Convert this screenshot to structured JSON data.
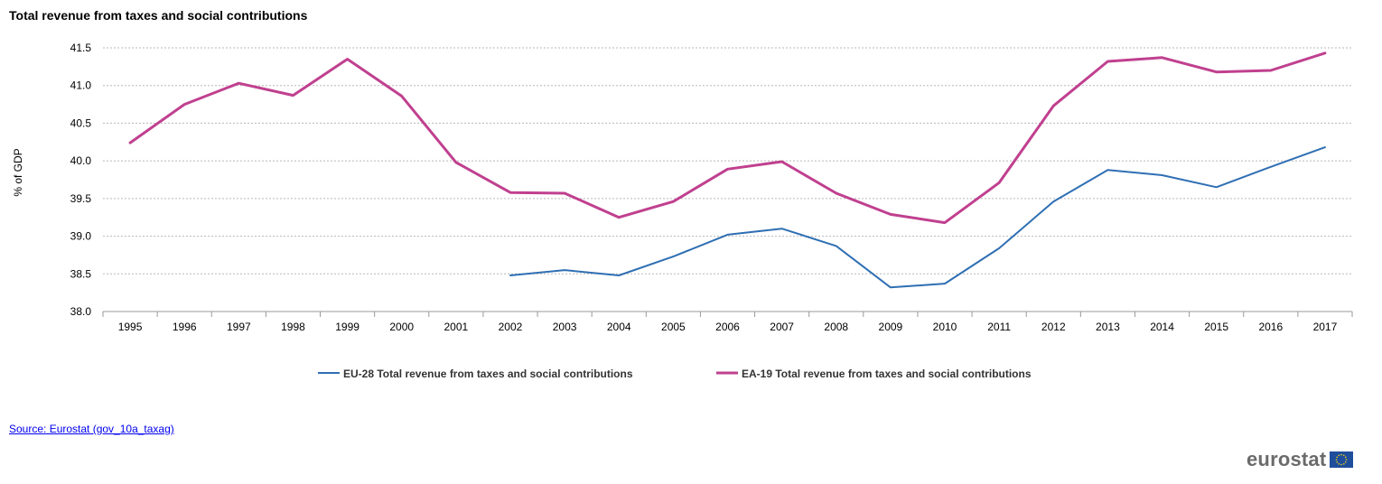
{
  "title": "Total revenue from taxes and social contributions",
  "source": {
    "label": "Source: Eurostat (gov_10a_taxag)"
  },
  "logo": {
    "text": "eurostat"
  },
  "chart_data": {
    "type": "line",
    "ylabel": "% of GDP",
    "xlabel": "",
    "ylim": [
      38.0,
      41.5
    ],
    "yticks": [
      "38.0",
      "38.5",
      "39.0",
      "39.5",
      "40.0",
      "40.5",
      "41.0",
      "41.5"
    ],
    "ytick_values": [
      38.0,
      38.5,
      39.0,
      39.5,
      40.0,
      40.5,
      41.0,
      41.5
    ],
    "categories": [
      "1995",
      "1996",
      "1997",
      "1998",
      "1999",
      "2000",
      "2001",
      "2002",
      "2003",
      "2004",
      "2005",
      "2006",
      "2007",
      "2008",
      "2009",
      "2010",
      "2011",
      "2012",
      "2013",
      "2014",
      "2015",
      "2016",
      "2017"
    ],
    "grid": "horizontal dashed",
    "legend_position": "bottom",
    "series": [
      {
        "name": "EU-28 Total revenue from taxes and social contributions",
        "color": "#2f6fb3",
        "values": [
          null,
          null,
          null,
          null,
          null,
          null,
          null,
          38.48,
          38.55,
          38.48,
          38.73,
          39.02,
          39.1,
          38.87,
          38.32,
          38.37,
          38.84,
          39.46,
          39.88,
          39.81,
          39.65,
          39.92,
          40.18
        ]
      },
      {
        "name": "EA-19 Total revenue from taxes and social contributions",
        "color": "#c0408f",
        "values": [
          40.24,
          40.75,
          41.03,
          40.87,
          41.35,
          40.86,
          39.98,
          39.58,
          39.57,
          39.25,
          39.46,
          39.89,
          39.99,
          39.57,
          39.29,
          39.18,
          39.71,
          40.73,
          41.32,
          41.37,
          41.18,
          41.2,
          41.43
        ]
      }
    ]
  }
}
